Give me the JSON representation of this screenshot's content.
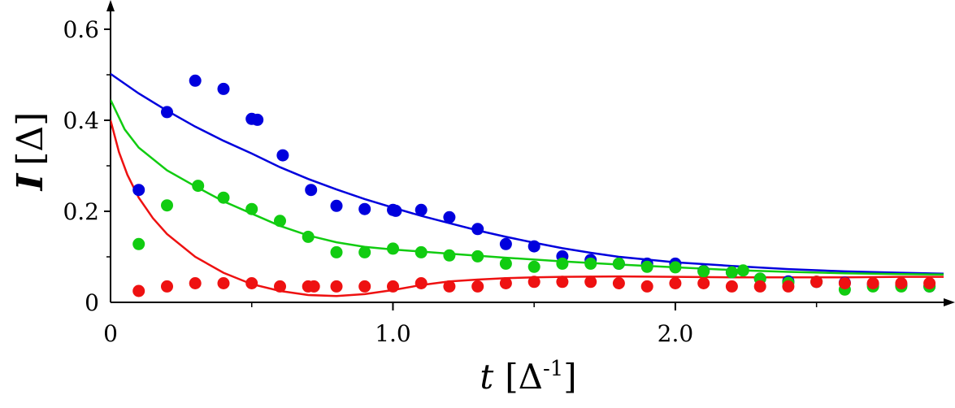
{
  "chart_data": {
    "type": "scatter",
    "title": "",
    "xlabel": {
      "var": "t",
      "unit_base": "Δ",
      "unit_exp": "-1"
    },
    "ylabel": {
      "var": "I",
      "unit": "Δ"
    },
    "xlim": [
      0,
      2.95
    ],
    "ylim": [
      0,
      0.65
    ],
    "x_ticks": [
      {
        "value": 0,
        "label": "0"
      },
      {
        "value": 1.0,
        "label": "1.0"
      },
      {
        "value": 2.0,
        "label": "2.0"
      }
    ],
    "x_minor_ticks": [
      0.5,
      1.5,
      2.5
    ],
    "y_ticks": [
      {
        "value": 0,
        "label": "0"
      },
      {
        "value": 0.2,
        "label": "0.2"
      },
      {
        "value": 0.4,
        "label": "0.4"
      },
      {
        "value": 0.6,
        "label": "0.6"
      }
    ],
    "y_minor_ticks": [
      0.1,
      0.3,
      0.5
    ],
    "grid": false,
    "series": [
      {
        "color": "#0000dd",
        "points": [
          [
            0.1,
            0.247
          ],
          [
            0.2,
            0.418
          ],
          [
            0.3,
            0.487
          ],
          [
            0.4,
            0.469
          ],
          [
            0.5,
            0.403
          ],
          [
            0.52,
            0.401
          ],
          [
            0.61,
            0.323
          ],
          [
            0.71,
            0.247
          ],
          [
            0.8,
            0.212
          ],
          [
            0.9,
            0.205
          ],
          [
            1.0,
            0.203
          ],
          [
            1.01,
            0.201
          ],
          [
            1.1,
            0.203
          ],
          [
            1.2,
            0.187
          ],
          [
            1.3,
            0.161
          ],
          [
            1.4,
            0.128
          ],
          [
            1.5,
            0.123
          ],
          [
            1.6,
            0.101
          ],
          [
            1.7,
            0.093
          ],
          [
            1.8,
            0.085
          ],
          [
            1.9,
            0.085
          ],
          [
            2.0,
            0.085
          ],
          [
            2.1,
            0.069
          ],
          [
            2.2,
            0.066
          ],
          [
            2.3,
            0.052
          ],
          [
            2.4,
            0.046
          ],
          [
            2.5,
            0.045
          ],
          [
            2.6,
            0.043
          ],
          [
            2.7,
            0.04
          ],
          [
            2.8,
            0.038
          ],
          [
            2.9,
            0.035
          ]
        ],
        "curve": [
          [
            0,
            0.502
          ],
          [
            0.1,
            0.459
          ],
          [
            0.2,
            0.421
          ],
          [
            0.3,
            0.386
          ],
          [
            0.4,
            0.355
          ],
          [
            0.5,
            0.327
          ],
          [
            0.6,
            0.297
          ],
          [
            0.7,
            0.271
          ],
          [
            0.8,
            0.248
          ],
          [
            0.9,
            0.227
          ],
          [
            1.0,
            0.208
          ],
          [
            1.1,
            0.19
          ],
          [
            1.2,
            0.174
          ],
          [
            1.3,
            0.158
          ],
          [
            1.4,
            0.144
          ],
          [
            1.5,
            0.131
          ],
          [
            1.6,
            0.119
          ],
          [
            1.7,
            0.109
          ],
          [
            1.8,
            0.1
          ],
          [
            1.9,
            0.094
          ],
          [
            2.0,
            0.088
          ],
          [
            2.2,
            0.08
          ],
          [
            2.4,
            0.073
          ],
          [
            2.6,
            0.068
          ],
          [
            2.8,
            0.065
          ],
          [
            2.95,
            0.063
          ]
        ]
      },
      {
        "color": "#11cc11",
        "points": [
          [
            0.1,
            0.128
          ],
          [
            0.2,
            0.213
          ],
          [
            0.31,
            0.256
          ],
          [
            0.4,
            0.23
          ],
          [
            0.5,
            0.205
          ],
          [
            0.6,
            0.179
          ],
          [
            0.7,
            0.144
          ],
          [
            0.8,
            0.11
          ],
          [
            0.9,
            0.11
          ],
          [
            1.0,
            0.118
          ],
          [
            1.1,
            0.11
          ],
          [
            1.2,
            0.103
          ],
          [
            1.3,
            0.101
          ],
          [
            1.4,
            0.085
          ],
          [
            1.5,
            0.078
          ],
          [
            1.6,
            0.085
          ],
          [
            1.7,
            0.085
          ],
          [
            1.8,
            0.085
          ],
          [
            1.9,
            0.078
          ],
          [
            2.0,
            0.077
          ],
          [
            2.1,
            0.068
          ],
          [
            2.2,
            0.066
          ],
          [
            2.24,
            0.07
          ],
          [
            2.3,
            0.052
          ],
          [
            2.4,
            0.043
          ],
          [
            2.5,
            0.045
          ],
          [
            2.6,
            0.028
          ],
          [
            2.7,
            0.035
          ],
          [
            2.8,
            0.035
          ],
          [
            2.9,
            0.035
          ]
        ],
        "curve": [
          [
            0,
            0.445
          ],
          [
            0.05,
            0.38
          ],
          [
            0.1,
            0.34
          ],
          [
            0.2,
            0.29
          ],
          [
            0.3,
            0.255
          ],
          [
            0.4,
            0.222
          ],
          [
            0.5,
            0.195
          ],
          [
            0.6,
            0.168
          ],
          [
            0.7,
            0.147
          ],
          [
            0.8,
            0.132
          ],
          [
            0.9,
            0.122
          ],
          [
            1.0,
            0.116
          ],
          [
            1.2,
            0.107
          ],
          [
            1.4,
            0.098
          ],
          [
            1.6,
            0.09
          ],
          [
            1.8,
            0.083
          ],
          [
            2.0,
            0.077
          ],
          [
            2.2,
            0.071
          ],
          [
            2.4,
            0.067
          ],
          [
            2.6,
            0.064
          ],
          [
            2.8,
            0.062
          ],
          [
            2.95,
            0.061
          ]
        ]
      },
      {
        "color": "#ee1111",
        "points": [
          [
            0.1,
            0.025
          ],
          [
            0.2,
            0.035
          ],
          [
            0.3,
            0.042
          ],
          [
            0.4,
            0.042
          ],
          [
            0.5,
            0.042
          ],
          [
            0.6,
            0.035
          ],
          [
            0.7,
            0.035
          ],
          [
            0.72,
            0.035
          ],
          [
            0.8,
            0.035
          ],
          [
            0.9,
            0.035
          ],
          [
            1.0,
            0.035
          ],
          [
            1.1,
            0.042
          ],
          [
            1.2,
            0.035
          ],
          [
            1.3,
            0.035
          ],
          [
            1.4,
            0.042
          ],
          [
            1.5,
            0.045
          ],
          [
            1.6,
            0.045
          ],
          [
            1.7,
            0.045
          ],
          [
            1.8,
            0.042
          ],
          [
            1.9,
            0.035
          ],
          [
            2.0,
            0.042
          ],
          [
            2.1,
            0.042
          ],
          [
            2.2,
            0.035
          ],
          [
            2.3,
            0.035
          ],
          [
            2.4,
            0.035
          ],
          [
            2.5,
            0.045
          ],
          [
            2.6,
            0.042
          ],
          [
            2.7,
            0.042
          ],
          [
            2.8,
            0.042
          ],
          [
            2.9,
            0.042
          ]
        ],
        "curve": [
          [
            0,
            0.4
          ],
          [
            0.03,
            0.33
          ],
          [
            0.06,
            0.28
          ],
          [
            0.1,
            0.23
          ],
          [
            0.15,
            0.185
          ],
          [
            0.2,
            0.15
          ],
          [
            0.3,
            0.1
          ],
          [
            0.4,
            0.065
          ],
          [
            0.5,
            0.04
          ],
          [
            0.6,
            0.025
          ],
          [
            0.7,
            0.016
          ],
          [
            0.8,
            0.014
          ],
          [
            0.9,
            0.018
          ],
          [
            1.0,
            0.027
          ],
          [
            1.1,
            0.038
          ],
          [
            1.2,
            0.046
          ],
          [
            1.3,
            0.05
          ],
          [
            1.4,
            0.053
          ],
          [
            1.5,
            0.055
          ],
          [
            1.6,
            0.056
          ],
          [
            1.8,
            0.057
          ],
          [
            2.0,
            0.056
          ],
          [
            2.2,
            0.055
          ],
          [
            2.4,
            0.055
          ],
          [
            2.6,
            0.055
          ],
          [
            2.8,
            0.056
          ],
          [
            2.95,
            0.056
          ]
        ]
      }
    ]
  }
}
